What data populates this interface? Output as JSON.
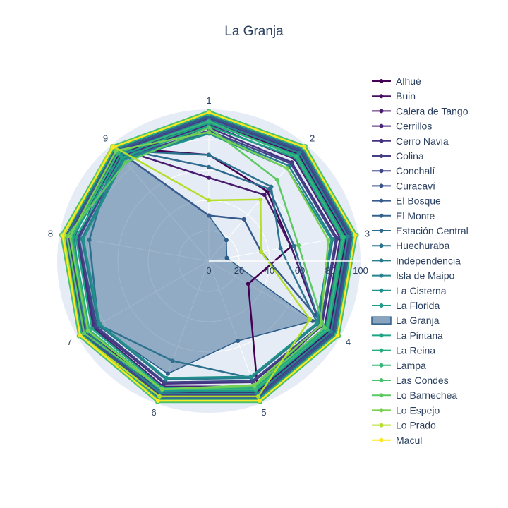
{
  "chart_data": {
    "type": "radar",
    "title": "La Granja",
    "angular_categories": [
      "1",
      "2",
      "3",
      "4",
      "5",
      "6",
      "7",
      "8",
      "9"
    ],
    "radial_range": [
      0,
      100
    ],
    "radial_ticks": [
      "0",
      "20",
      "40",
      "60",
      "80",
      "100"
    ],
    "legend_placement": "right",
    "highlighted_series": "La Granja",
    "series": [
      {
        "name": "Alhué",
        "color": "#440154",
        "values": [
          70,
          60,
          55,
          30,
          95,
          90,
          95,
          98,
          98
        ]
      },
      {
        "name": "Buin",
        "color": "#470e61",
        "values": [
          92,
          92,
          92,
          92,
          92,
          92,
          92,
          92,
          92
        ]
      },
      {
        "name": "Calera de Tango",
        "color": "#481b6d",
        "values": [
          55,
          57,
          55,
          85,
          90,
          92,
          95,
          95,
          98
        ]
      },
      {
        "name": "Cerrillos",
        "color": "#482576",
        "values": [
          90,
          88,
          88,
          88,
          88,
          88,
          88,
          88,
          90
        ]
      },
      {
        "name": "Cerro Navia",
        "color": "#46337f",
        "values": [
          88,
          85,
          86,
          86,
          85,
          86,
          87,
          88,
          90
        ]
      },
      {
        "name": "Colina",
        "color": "#433e85",
        "values": [
          94,
          94,
          94,
          94,
          94,
          94,
          94,
          94,
          94
        ]
      },
      {
        "name": "Conchalí",
        "color": "#404688",
        "values": [
          86,
          84,
          85,
          85,
          84,
          85,
          86,
          87,
          89
        ]
      },
      {
        "name": "Curacaví",
        "color": "#3b528b",
        "values": [
          95,
          95,
          95,
          95,
          95,
          95,
          95,
          95,
          95
        ]
      },
      {
        "name": "El Bosque",
        "color": "#375b8d",
        "values": [
          30,
          36,
          35,
          90,
          90,
          92,
          95,
          90,
          98
        ]
      },
      {
        "name": "El Monte",
        "color": "#33638d",
        "values": [
          96,
          96,
          96,
          96,
          96,
          96,
          96,
          96,
          96
        ]
      },
      {
        "name": "Estación Central",
        "color": "#2f6b8e",
        "values": [
          62,
          62,
          57,
          85,
          88,
          92,
          95,
          95,
          98
        ]
      },
      {
        "name": "Huechuraba",
        "color": "#2c728e",
        "values": [
          70,
          64,
          48,
          83,
          82,
          70,
          84,
          80,
          95
        ]
      },
      {
        "name": "Independencia",
        "color": "#287c8e",
        "values": [
          85,
          82,
          83,
          83,
          82,
          83,
          84,
          85,
          88
        ]
      },
      {
        "name": "Isla de Maipo",
        "color": "#25848e",
        "values": [
          93,
          93,
          93,
          93,
          93,
          93,
          93,
          93,
          93
        ]
      },
      {
        "name": "La Cisterna",
        "color": "#21918c",
        "values": [
          84,
          80,
          82,
          82,
          81,
          82,
          83,
          84,
          87
        ]
      },
      {
        "name": "La Florida",
        "color": "#1e9b8a",
        "values": [
          91,
          91,
          91,
          91,
          91,
          91,
          91,
          91,
          91
        ]
      },
      {
        "name": "La Granja",
        "color": "#2c5d8a",
        "highlight": true,
        "values": [
          30,
          18,
          12,
          79,
          56,
          79,
          85,
          87,
          97
        ]
      },
      {
        "name": "La Pintana",
        "color": "#20a486",
        "values": [
          89,
          89,
          89,
          89,
          89,
          89,
          89,
          89,
          89
        ]
      },
      {
        "name": "La Reina",
        "color": "#28ae80",
        "values": [
          97,
          97,
          97,
          97,
          97,
          97,
          97,
          97,
          97
        ]
      },
      {
        "name": "Lampa",
        "color": "#35b779",
        "values": [
          92,
          90,
          90,
          90,
          90,
          90,
          91,
          92,
          93
        ]
      },
      {
        "name": "Las Condes",
        "color": "#4ac16d",
        "values": [
          99,
          99,
          99,
          99,
          99,
          99,
          99,
          99,
          99
        ]
      },
      {
        "name": "Lo Barnechea",
        "color": "#5ec962",
        "values": [
          88,
          70,
          60,
          88,
          88,
          90,
          95,
          95,
          85
        ]
      },
      {
        "name": "Lo Espejo",
        "color": "#7ad151",
        "values": [
          85,
          80,
          80,
          85,
          87,
          90,
          92,
          93,
          95
        ]
      },
      {
        "name": "Lo Prado",
        "color": "#b5de2b",
        "values": [
          40,
          53,
          35,
          77,
          95,
          95,
          98,
          97,
          99
        ]
      },
      {
        "name": "Macul",
        "color": "#fde725",
        "values": [
          98,
          98,
          98,
          98,
          98,
          98,
          98,
          98,
          98
        ]
      }
    ]
  }
}
